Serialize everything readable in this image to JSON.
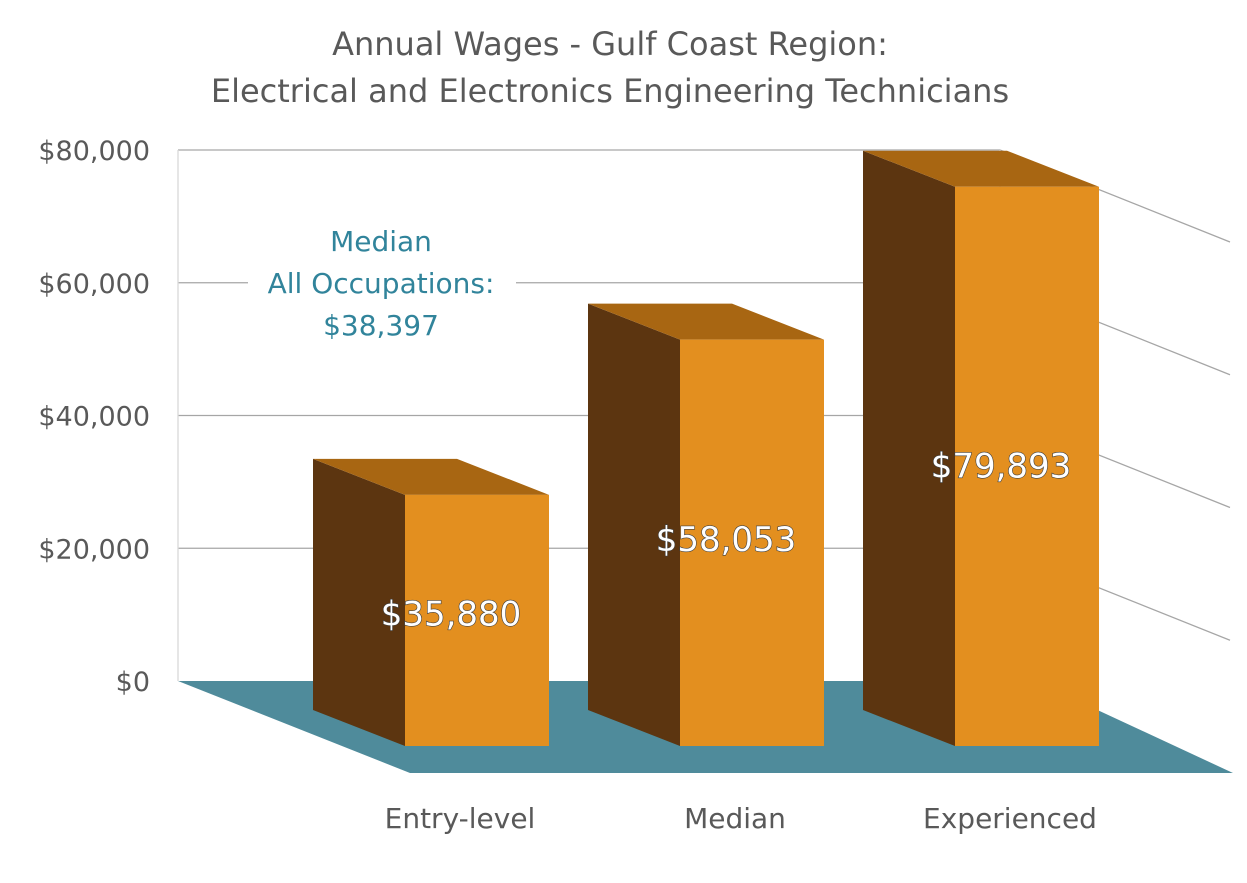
{
  "chart_data": {
    "type": "bar",
    "title_lines": [
      "Annual Wages - Gulf Coast Region:",
      "Electrical and Electronics Engineering Technicians"
    ],
    "categories": [
      "Entry-level",
      "Median",
      "Experienced"
    ],
    "values": [
      35880,
      58053,
      79893
    ],
    "data_labels": [
      "$35,880",
      "$58,053",
      "$79,893"
    ],
    "y_ticks": [
      "$0",
      "$20,000",
      "$40,000",
      "$60,000",
      "$80,000"
    ],
    "ylim": [
      0,
      80000
    ],
    "grid": true,
    "three_d": true,
    "annotation": {
      "lines": [
        "Median",
        "All Occupations:",
        "$38,397"
      ],
      "value": 38397
    },
    "colors": {
      "bar_front": "#e38f1f",
      "bar_side": "#5c3510",
      "bar_top": "#a86612",
      "floor": "#4f8b9b",
      "grid": "#a6a6a6",
      "annotation": "#31849b",
      "text": "#595959"
    }
  }
}
